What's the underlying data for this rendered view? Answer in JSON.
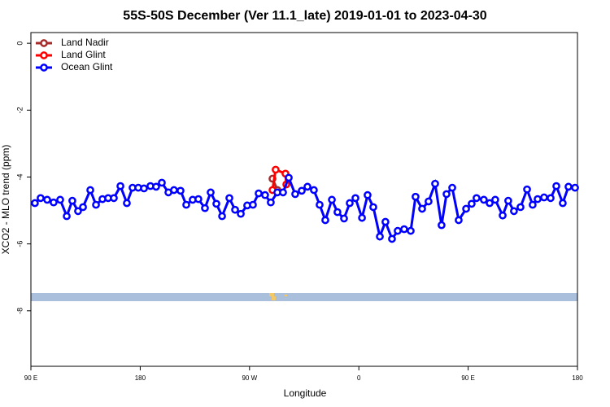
{
  "chart_data": {
    "type": "line",
    "title": "55S-50S December (Ver 11.1_late)   2019-01-01 to 2023-04-30",
    "x_label": "Longitude",
    "y_label": "XCO2 - MLO trend (ppm)",
    "xlim": [
      90,
      540
    ],
    "ylim": [
      -9.66,
      0.32
    ],
    "xticks": [
      {
        "value": 90,
        "label": "90 E"
      },
      {
        "value": 180,
        "label": "180"
      },
      {
        "value": 270,
        "label": "90 W"
      },
      {
        "value": 360,
        "label": "0"
      },
      {
        "value": 450,
        "label": "90 E"
      },
      {
        "value": 540,
        "label": "180"
      }
    ],
    "yticks": [
      0,
      -2,
      -4,
      -6,
      -8
    ],
    "legend": "top-left",
    "series": [
      {
        "name": "Land Nadir",
        "color": "#a52a2a",
        "x": [
          288.9,
          293.0
        ],
        "values": [
          -4.05,
          -4.39
        ]
      },
      {
        "name": "Land Glint",
        "color": "#ff0000",
        "x": [
          288.9,
          291.5,
          299.6,
          300.3
        ],
        "values": [
          -4.39,
          -3.78,
          -3.9,
          -4.22
        ]
      },
      {
        "name": "Ocean Glint",
        "color": "#0000ff",
        "x": [
          93.3,
          98.0,
          103.4,
          108.7,
          114.1,
          119.5,
          124.1,
          128.8,
          132.9,
          138.9,
          143.6,
          148.9,
          153.6,
          158.3,
          163.7,
          169.0,
          173.7,
          178.4,
          183.1,
          188.4,
          193.1,
          197.8,
          203.2,
          207.8,
          213.2,
          217.9,
          223.2,
          227.9,
          233.3,
          238.0,
          242.7,
          247.4,
          253.4,
          258.1,
          262.8,
          268.1,
          272.8,
          277.5,
          282.8,
          287.5,
          292.9,
          297.6,
          302.3,
          307.6,
          313.0,
          317.7,
          323.0,
          327.7,
          332.4,
          337.8,
          342.4,
          347.8,
          352.5,
          357.2,
          362.6,
          367.2,
          371.9,
          377.3,
          381.9,
          387.3,
          392.0,
          397.3,
          402.7,
          406.7,
          412.1,
          417.4,
          422.8,
          428.1,
          432.2,
          436.9,
          442.2,
          448.3,
          452.9,
          456.9,
          462.9,
          467.7,
          472.3,
          478.4,
          483.0,
          487.7,
          493.1,
          498.5,
          503.1,
          507.2,
          512.5,
          517.9,
          522.6,
          527.9,
          532.6,
          538.0
        ],
        "values": [
          -4.78,
          -4.63,
          -4.68,
          -4.76,
          -4.68,
          -5.17,
          -4.71,
          -5.02,
          -4.9,
          -4.39,
          -4.83,
          -4.66,
          -4.63,
          -4.63,
          -4.27,
          -4.78,
          -4.32,
          -4.32,
          -4.34,
          -4.27,
          -4.29,
          -4.17,
          -4.46,
          -4.39,
          -4.41,
          -4.83,
          -4.68,
          -4.66,
          -4.93,
          -4.46,
          -4.8,
          -5.17,
          -4.63,
          -4.98,
          -5.1,
          -4.85,
          -4.83,
          -4.49,
          -4.54,
          -4.76,
          -4.46,
          -4.46,
          -4.02,
          -4.51,
          -4.41,
          -4.29,
          -4.39,
          -4.83,
          -5.29,
          -4.68,
          -5.05,
          -5.24,
          -4.78,
          -4.63,
          -5.22,
          -4.54,
          -4.9,
          -5.78,
          -5.34,
          -5.85,
          -5.61,
          -5.56,
          -5.61,
          -4.59,
          -4.95,
          -4.73,
          -4.2,
          -5.44,
          -4.51,
          -4.32,
          -5.29,
          -4.95,
          -4.8,
          -4.63,
          -4.68,
          -4.78,
          -4.68,
          -5.15,
          -4.71,
          -5.02,
          -4.9,
          -4.37,
          -4.83,
          -4.66,
          -4.61,
          -4.63,
          -4.27,
          -4.78,
          -4.29,
          -4.32
        ]
      }
    ]
  }
}
